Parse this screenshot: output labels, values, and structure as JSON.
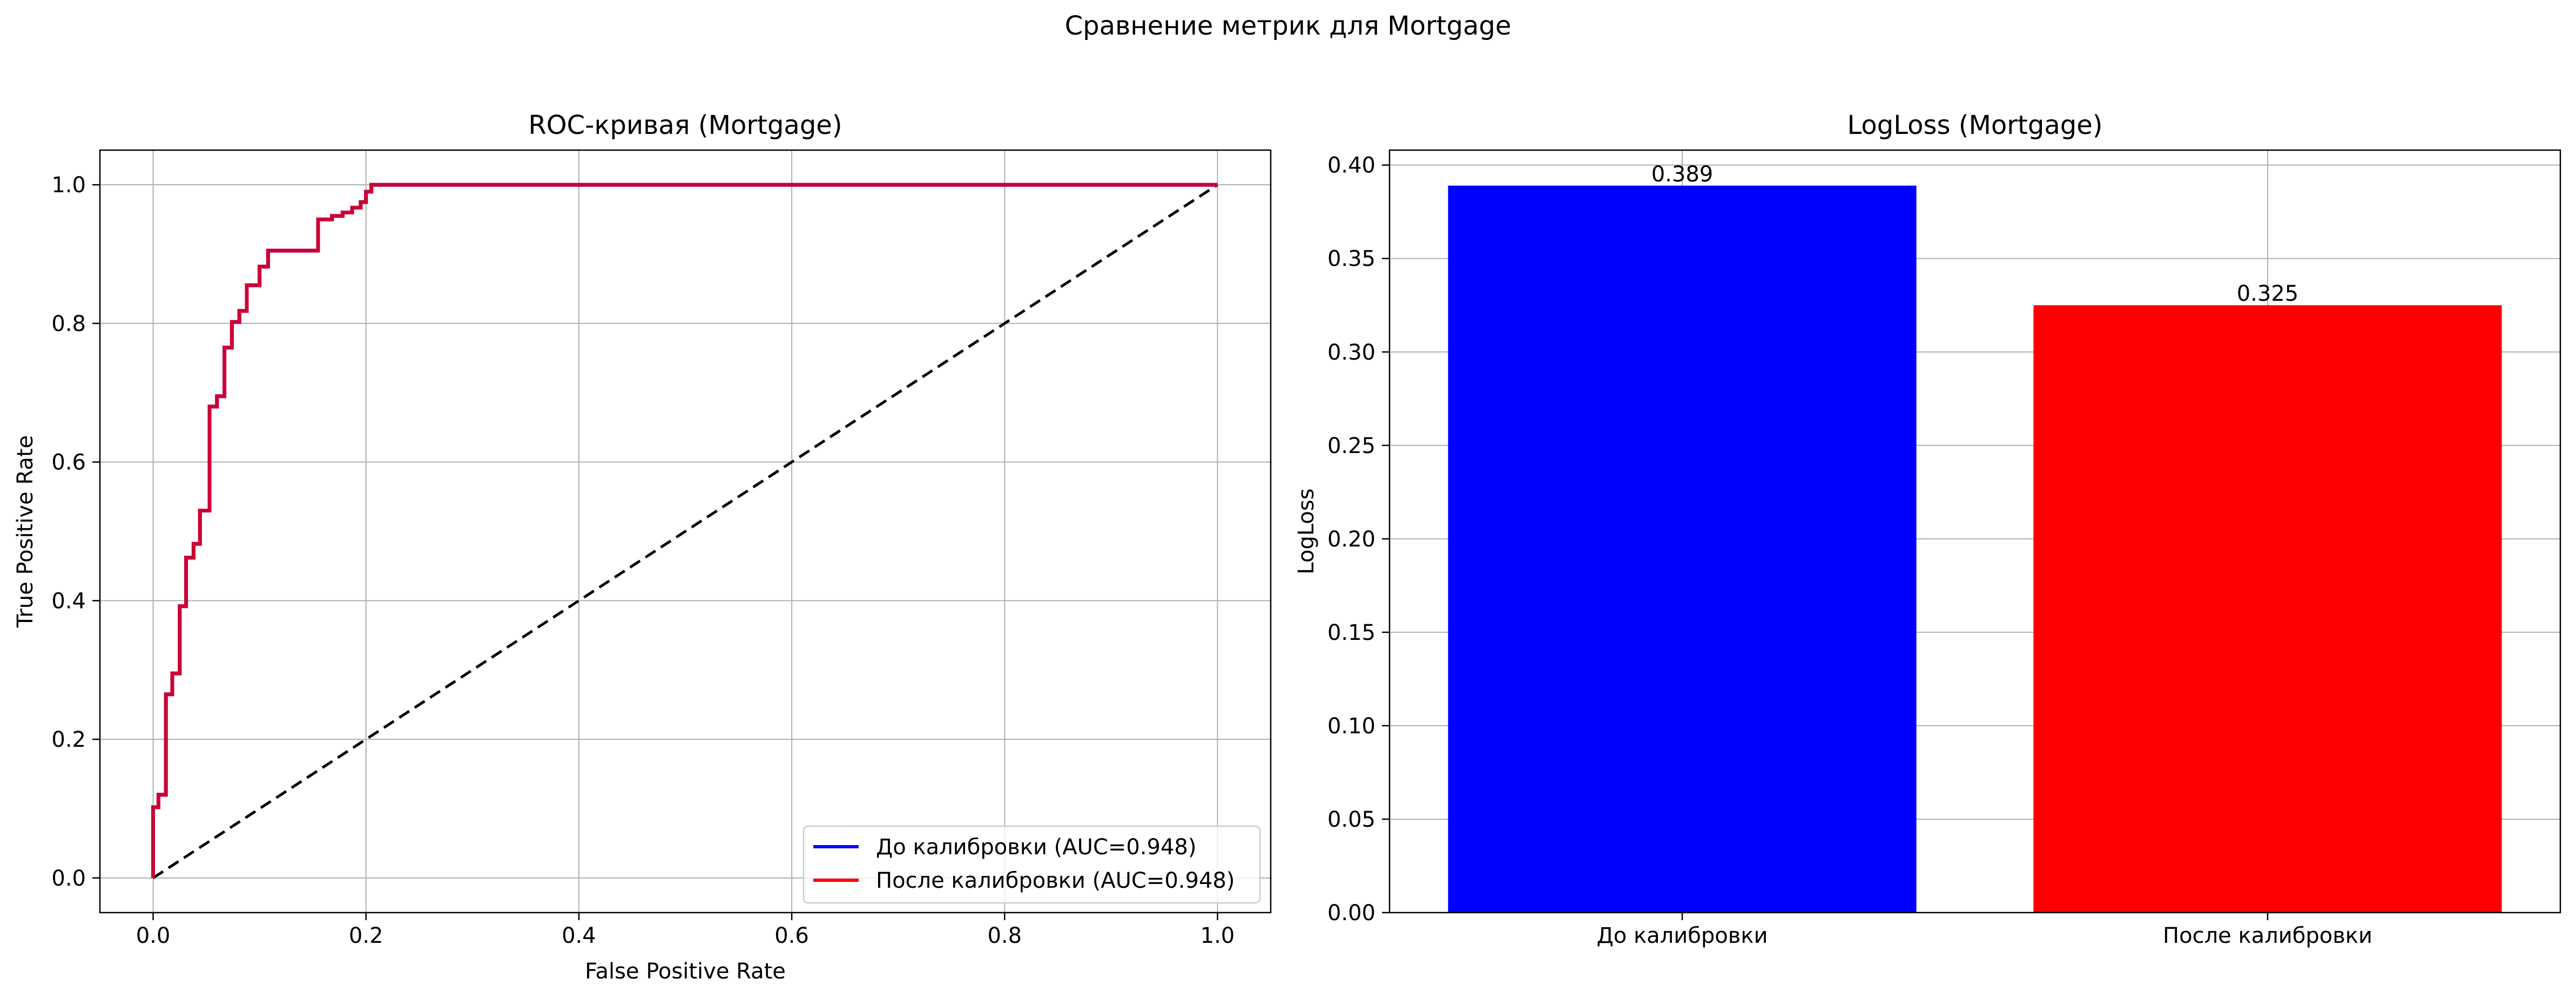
{
  "figure": {
    "suptitle": "Сравнение метрик для Mortgage"
  },
  "chart_data": [
    {
      "type": "line",
      "title": "ROC-кривая (Mortgage)",
      "xlabel": "False Positive Rate",
      "ylabel": "True Positive Rate",
      "xlim": [
        -0.05,
        1.05
      ],
      "ylim": [
        -0.05,
        1.05
      ],
      "xticks": [
        "0.0",
        "0.2",
        "0.4",
        "0.6",
        "0.8",
        "1.0"
      ],
      "yticks": [
        "0.0",
        "0.2",
        "0.4",
        "0.6",
        "0.8",
        "1.0"
      ],
      "grid": true,
      "legend_position": "lower-right",
      "series": [
        {
          "name": "До калибровки (AUC=0.948)",
          "color": "#0000ff",
          "x": [
            0.0,
            0.0,
            0.005,
            0.005,
            0.012,
            0.012,
            0.018,
            0.018,
            0.025,
            0.025,
            0.031,
            0.031,
            0.038,
            0.038,
            0.044,
            0.044,
            0.053,
            0.053,
            0.06,
            0.06,
            0.067,
            0.067,
            0.074,
            0.074,
            0.081,
            0.081,
            0.088,
            0.088,
            0.1,
            0.1,
            0.108,
            0.108,
            0.155,
            0.155,
            0.168,
            0.168,
            0.178,
            0.178,
            0.187,
            0.187,
            0.195,
            0.195,
            0.2,
            0.2,
            0.205,
            0.205,
            1.0
          ],
          "y": [
            0.0,
            0.102,
            0.102,
            0.12,
            0.12,
            0.265,
            0.265,
            0.295,
            0.295,
            0.392,
            0.392,
            0.462,
            0.462,
            0.482,
            0.482,
            0.53,
            0.53,
            0.68,
            0.68,
            0.695,
            0.695,
            0.765,
            0.765,
            0.802,
            0.802,
            0.818,
            0.818,
            0.855,
            0.855,
            0.882,
            0.882,
            0.905,
            0.905,
            0.95,
            0.95,
            0.955,
            0.955,
            0.96,
            0.96,
            0.967,
            0.967,
            0.975,
            0.975,
            0.99,
            0.99,
            1.0,
            1.0
          ]
        },
        {
          "name": "После калибровки (AUC=0.948)",
          "color": "#ff0000",
          "x": [
            0.0,
            0.0,
            0.005,
            0.005,
            0.012,
            0.012,
            0.018,
            0.018,
            0.025,
            0.025,
            0.031,
            0.031,
            0.038,
            0.038,
            0.044,
            0.044,
            0.053,
            0.053,
            0.06,
            0.06,
            0.067,
            0.067,
            0.074,
            0.074,
            0.081,
            0.081,
            0.088,
            0.088,
            0.1,
            0.1,
            0.108,
            0.108,
            0.155,
            0.155,
            0.168,
            0.168,
            0.178,
            0.178,
            0.187,
            0.187,
            0.195,
            0.195,
            0.2,
            0.2,
            0.205,
            0.205,
            1.0
          ],
          "y": [
            0.0,
            0.102,
            0.102,
            0.12,
            0.12,
            0.265,
            0.265,
            0.295,
            0.295,
            0.392,
            0.392,
            0.462,
            0.462,
            0.482,
            0.482,
            0.53,
            0.53,
            0.68,
            0.68,
            0.695,
            0.695,
            0.765,
            0.765,
            0.802,
            0.802,
            0.818,
            0.818,
            0.855,
            0.855,
            0.882,
            0.882,
            0.905,
            0.905,
            0.95,
            0.95,
            0.955,
            0.955,
            0.96,
            0.96,
            0.967,
            0.967,
            0.975,
            0.975,
            0.99,
            0.99,
            1.0,
            1.0
          ]
        }
      ],
      "reference_line": {
        "x": [
          0,
          1
        ],
        "y": [
          0,
          1
        ],
        "color": "#000000",
        "style": "dashed"
      }
    },
    {
      "type": "bar",
      "title": "LogLoss (Mortgage)",
      "xlabel": "",
      "ylabel": "LogLoss",
      "categories": [
        "До калибровки",
        "После калибровки"
      ],
      "values": [
        0.389,
        0.325
      ],
      "value_labels": [
        "0.389",
        "0.325"
      ],
      "colors": [
        "#0000ff",
        "#ff0000"
      ],
      "ylim": [
        0,
        0.408
      ],
      "yticks": [
        "0.00",
        "0.05",
        "0.10",
        "0.15",
        "0.20",
        "0.25",
        "0.30",
        "0.35",
        "0.40"
      ],
      "grid": true
    }
  ]
}
